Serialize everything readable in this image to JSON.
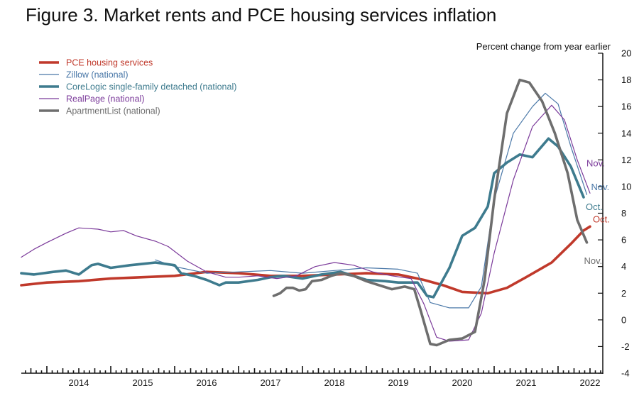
{
  "figure": {
    "title": "Figure 3. Market rents and PCE housing services inflation"
  },
  "chart_data": {
    "type": "line",
    "title": "Figure 3. Market rents and PCE housing services inflation",
    "ylabel": "Percent change from year earlier",
    "xlabel": "",
    "xlim": [
      2013.6,
      2022.7
    ],
    "ylim": [
      -4,
      20
    ],
    "y_ticks": [
      -4,
      -2,
      0,
      2,
      4,
      6,
      8,
      10,
      12,
      14,
      16,
      18,
      20
    ],
    "x_tick_labels": [
      "2014",
      "2015",
      "2016",
      "2017",
      "2018",
      "2019",
      "2020",
      "2021",
      "2022"
    ],
    "grid": false,
    "legend_position": "top-left",
    "series": [
      {
        "name": "PCE housing services",
        "color": "#c0392b",
        "style": "thick",
        "end_label": "Oct.",
        "points": [
          [
            2013.6,
            2.6
          ],
          [
            2014.0,
            2.8
          ],
          [
            2014.5,
            2.9
          ],
          [
            2015.0,
            3.1
          ],
          [
            2015.5,
            3.2
          ],
          [
            2016.0,
            3.3
          ],
          [
            2016.5,
            3.6
          ],
          [
            2017.0,
            3.5
          ],
          [
            2017.5,
            3.3
          ],
          [
            2018.0,
            3.3
          ],
          [
            2018.5,
            3.4
          ],
          [
            2019.0,
            3.5
          ],
          [
            2019.5,
            3.4
          ],
          [
            2019.9,
            3.0
          ],
          [
            2020.2,
            2.6
          ],
          [
            2020.5,
            2.1
          ],
          [
            2020.9,
            2.0
          ],
          [
            2021.2,
            2.4
          ],
          [
            2021.5,
            3.2
          ],
          [
            2021.9,
            4.3
          ],
          [
            2022.2,
            5.7
          ],
          [
            2022.4,
            6.7
          ],
          [
            2022.5,
            7.0
          ]
        ]
      },
      {
        "name": "Zillow (national)",
        "color": "#4a78a8",
        "style": "thin",
        "end_label": "Nov.",
        "points": [
          [
            2015.7,
            4.5
          ],
          [
            2016.0,
            4.0
          ],
          [
            2016.5,
            3.5
          ],
          [
            2017.0,
            3.6
          ],
          [
            2017.5,
            3.7
          ],
          [
            2018.0,
            3.5
          ],
          [
            2018.5,
            3.7
          ],
          [
            2019.0,
            3.9
          ],
          [
            2019.5,
            3.8
          ],
          [
            2019.8,
            3.5
          ],
          [
            2020.0,
            1.3
          ],
          [
            2020.3,
            0.9
          ],
          [
            2020.6,
            0.9
          ],
          [
            2020.8,
            2.5
          ],
          [
            2021.0,
            9.0
          ],
          [
            2021.3,
            14.0
          ],
          [
            2021.6,
            16.0
          ],
          [
            2021.8,
            17.0
          ],
          [
            2022.0,
            16.2
          ],
          [
            2022.2,
            13.0
          ],
          [
            2022.45,
            9.4
          ]
        ]
      },
      {
        "name": "CoreLogic single-family detached (national)",
        "color": "#3e7b8e",
        "style": "thick",
        "end_label": "Oct.",
        "points": [
          [
            2013.6,
            3.5
          ],
          [
            2013.8,
            3.4
          ],
          [
            2014.1,
            3.6
          ],
          [
            2014.3,
            3.7
          ],
          [
            2014.5,
            3.4
          ],
          [
            2014.7,
            4.1
          ],
          [
            2014.8,
            4.2
          ],
          [
            2015.0,
            3.9
          ],
          [
            2015.3,
            4.1
          ],
          [
            2015.5,
            4.2
          ],
          [
            2015.7,
            4.3
          ],
          [
            2016.0,
            4.1
          ],
          [
            2016.1,
            3.5
          ],
          [
            2016.3,
            3.3
          ],
          [
            2016.5,
            3.0
          ],
          [
            2016.7,
            2.6
          ],
          [
            2016.8,
            2.8
          ],
          [
            2017.0,
            2.8
          ],
          [
            2017.3,
            3.0
          ],
          [
            2017.5,
            3.2
          ],
          [
            2017.7,
            3.3
          ],
          [
            2018.0,
            3.1
          ],
          [
            2018.3,
            3.4
          ],
          [
            2018.6,
            3.6
          ],
          [
            2018.8,
            3.3
          ],
          [
            2019.0,
            3.0
          ],
          [
            2019.3,
            2.9
          ],
          [
            2019.5,
            2.8
          ],
          [
            2019.8,
            2.8
          ],
          [
            2019.95,
            1.8
          ],
          [
            2020.05,
            1.7
          ],
          [
            2020.3,
            3.9
          ],
          [
            2020.5,
            6.3
          ],
          [
            2020.7,
            6.9
          ],
          [
            2020.9,
            8.5
          ],
          [
            2021.0,
            11.0
          ],
          [
            2021.2,
            11.8
          ],
          [
            2021.4,
            12.4
          ],
          [
            2021.6,
            12.2
          ],
          [
            2021.85,
            13.6
          ],
          [
            2022.0,
            13.0
          ],
          [
            2022.2,
            11.5
          ],
          [
            2022.4,
            9.2
          ]
        ]
      },
      {
        "name": "RealPage (national)",
        "color": "#7b3a9a",
        "style": "thin",
        "end_label": "Nov.",
        "points": [
          [
            2013.6,
            4.7
          ],
          [
            2013.8,
            5.3
          ],
          [
            2014.0,
            5.8
          ],
          [
            2014.3,
            6.5
          ],
          [
            2014.5,
            6.9
          ],
          [
            2014.8,
            6.8
          ],
          [
            2015.0,
            6.6
          ],
          [
            2015.2,
            6.7
          ],
          [
            2015.4,
            6.3
          ],
          [
            2015.7,
            5.9
          ],
          [
            2015.9,
            5.5
          ],
          [
            2016.2,
            4.4
          ],
          [
            2016.5,
            3.6
          ],
          [
            2016.8,
            3.2
          ],
          [
            2017.0,
            3.2
          ],
          [
            2017.3,
            3.3
          ],
          [
            2017.6,
            3.1
          ],
          [
            2017.9,
            3.3
          ],
          [
            2018.2,
            4.0
          ],
          [
            2018.5,
            4.3
          ],
          [
            2018.8,
            4.1
          ],
          [
            2019.1,
            3.6
          ],
          [
            2019.4,
            3.3
          ],
          [
            2019.7,
            3.1
          ],
          [
            2019.9,
            1.2
          ],
          [
            2020.1,
            -1.3
          ],
          [
            2020.3,
            -1.6
          ],
          [
            2020.6,
            -1.5
          ],
          [
            2020.8,
            0.5
          ],
          [
            2021.0,
            5.0
          ],
          [
            2021.3,
            10.5
          ],
          [
            2021.6,
            14.5
          ],
          [
            2021.9,
            16.1
          ],
          [
            2022.1,
            15.0
          ],
          [
            2022.3,
            12.0
          ],
          [
            2022.5,
            9.5
          ]
        ]
      },
      {
        "name": "ApartmentList (national)",
        "color": "#6e6e6e",
        "style": "thick",
        "end_label": "Nov.",
        "points": [
          [
            2017.55,
            1.8
          ],
          [
            2017.65,
            2.0
          ],
          [
            2017.75,
            2.4
          ],
          [
            2017.85,
            2.4
          ],
          [
            2017.95,
            2.2
          ],
          [
            2018.05,
            2.3
          ],
          [
            2018.15,
            2.9
          ],
          [
            2018.3,
            3.0
          ],
          [
            2018.45,
            3.3
          ],
          [
            2018.6,
            3.5
          ],
          [
            2018.8,
            3.3
          ],
          [
            2019.0,
            2.9
          ],
          [
            2019.2,
            2.6
          ],
          [
            2019.4,
            2.3
          ],
          [
            2019.6,
            2.5
          ],
          [
            2019.75,
            2.3
          ],
          [
            2019.85,
            0.7
          ],
          [
            2020.0,
            -1.8
          ],
          [
            2020.1,
            -1.9
          ],
          [
            2020.3,
            -1.5
          ],
          [
            2020.5,
            -1.4
          ],
          [
            2020.7,
            -0.9
          ],
          [
            2020.85,
            3.0
          ],
          [
            2021.0,
            9.0
          ],
          [
            2021.2,
            15.5
          ],
          [
            2021.4,
            18.0
          ],
          [
            2021.55,
            17.8
          ],
          [
            2021.75,
            16.4
          ],
          [
            2021.95,
            14.0
          ],
          [
            2022.15,
            11.0
          ],
          [
            2022.3,
            7.5
          ],
          [
            2022.45,
            5.8
          ]
        ]
      }
    ]
  }
}
